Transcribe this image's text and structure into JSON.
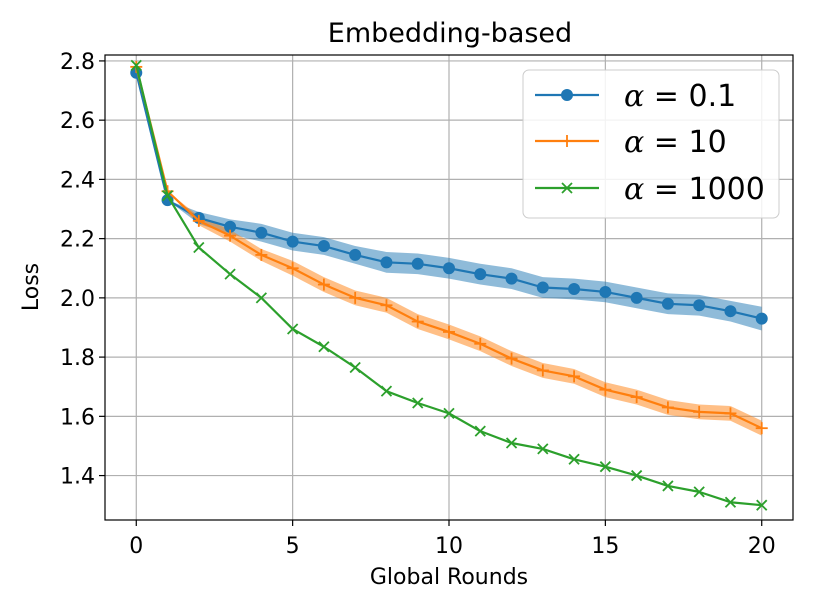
{
  "chart_data": {
    "type": "line",
    "title": "Embedding-based",
    "xlabel": "Global Rounds",
    "ylabel": "Loss",
    "xlim": [
      -1,
      21
    ],
    "ylim": [
      1.25,
      2.82
    ],
    "xticks": [
      0,
      5,
      10,
      15,
      20
    ],
    "xtick_labels": [
      "0",
      "5",
      "10",
      "15",
      "20"
    ],
    "yticks": [
      1.4,
      1.6,
      1.8,
      2.0,
      2.2,
      2.4,
      2.6,
      2.8
    ],
    "ytick_labels": [
      "1.4",
      "1.6",
      "1.8",
      "2.0",
      "2.2",
      "2.4",
      "2.6",
      "2.8"
    ],
    "grid": true,
    "legend_position": "top-right",
    "x": [
      0,
      1,
      2,
      3,
      4,
      5,
      6,
      7,
      8,
      9,
      10,
      11,
      12,
      13,
      14,
      15,
      16,
      17,
      18,
      19,
      20
    ],
    "series": [
      {
        "name": "α = 0.1",
        "color": "#1f77b4",
        "marker": "circle",
        "values": [
          2.76,
          2.33,
          2.27,
          2.24,
          2.22,
          2.19,
          2.175,
          2.145,
          2.12,
          2.115,
          2.1,
          2.08,
          2.065,
          2.035,
          2.03,
          2.02,
          2.0,
          1.98,
          1.975,
          1.955,
          1.93
        ],
        "band": [
          0,
          0,
          0.02,
          0.025,
          0.03,
          0.03,
          0.03,
          0.03,
          0.035,
          0.035,
          0.035,
          0.035,
          0.035,
          0.035,
          0.035,
          0.035,
          0.035,
          0.035,
          0.035,
          0.035,
          0.04
        ]
      },
      {
        "name": "α = 10",
        "color": "#ff7f0e",
        "marker": "plus",
        "values": [
          2.78,
          2.36,
          2.26,
          2.21,
          2.145,
          2.1,
          2.045,
          2.0,
          1.975,
          1.92,
          1.885,
          1.845,
          1.795,
          1.755,
          1.735,
          1.69,
          1.665,
          1.63,
          1.615,
          1.61,
          1.56
        ],
        "band": [
          0,
          0,
          0.015,
          0.02,
          0.02,
          0.025,
          0.025,
          0.025,
          0.025,
          0.025,
          0.025,
          0.025,
          0.025,
          0.025,
          0.025,
          0.025,
          0.025,
          0.025,
          0.025,
          0.025,
          0.025
        ]
      },
      {
        "name": "α = 1000",
        "color": "#2ca02c",
        "marker": "x",
        "values": [
          2.785,
          2.345,
          2.17,
          2.08,
          2.0,
          1.895,
          1.835,
          1.765,
          1.685,
          1.645,
          1.61,
          1.55,
          1.51,
          1.49,
          1.455,
          1.43,
          1.4,
          1.365,
          1.345,
          1.31,
          1.3
        ],
        "band": []
      }
    ],
    "legend": [
      {
        "symbol": "α",
        "equals": " = ",
        "value": "0.1"
      },
      {
        "symbol": "α",
        "equals": " = ",
        "value": "10"
      },
      {
        "symbol": "α",
        "equals": " = ",
        "value": "1000"
      }
    ]
  }
}
